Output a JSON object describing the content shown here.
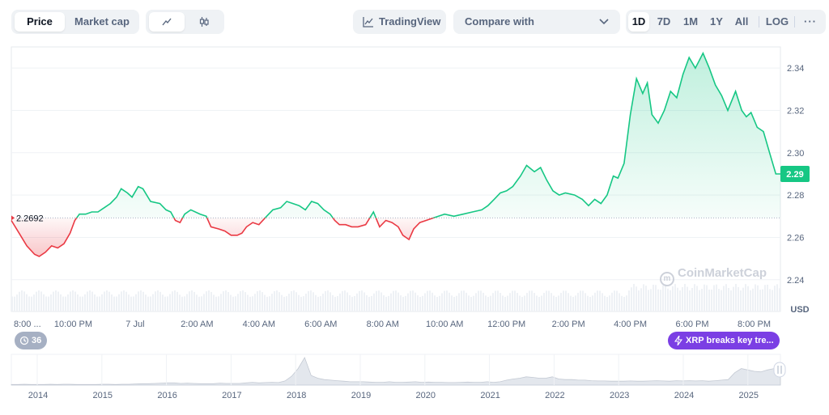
{
  "toolbar": {
    "tabs": [
      "Price",
      "Market cap"
    ],
    "active_tab": "Price",
    "line_icon": "line-chart-icon",
    "candle_icon": "candlestick-icon",
    "tradingview_label": "TradingView",
    "compare_placeholder": "Compare with",
    "ranges": [
      "1D",
      "7D",
      "1M",
      "1Y",
      "All"
    ],
    "active_range": "1D",
    "log_label": "LOG",
    "more_icon": "more-options-icon"
  },
  "colors": {
    "up": "#16c784",
    "down": "#ea3943",
    "accent_badge": "#7b3fe4",
    "grid": "#eff2f5",
    "text": "#58667e"
  },
  "events": {
    "history_count": "36",
    "news_label": "XRP breaks key tre..."
  },
  "watermark": "CoinMarketCap",
  "chart_data": {
    "type": "area",
    "ylabel": "USD",
    "ylim": [
      2.225,
      2.35
    ],
    "reference_price": 2.2692,
    "reference_label": "2.2692",
    "current_price": 2.29,
    "current_label": "2.29",
    "y_ticks": [
      "2.24",
      "2.26",
      "2.28",
      "2.30",
      "2.32",
      "2.34"
    ],
    "x_ticks": [
      "8:00 ...",
      "10:00 PM",
      "7 Jul",
      "2:00 AM",
      "4:00 AM",
      "6:00 AM",
      "8:00 AM",
      "10:00 AM",
      "12:00 PM",
      "2:00 PM",
      "4:00 PM",
      "6:00 PM",
      "8:00 PM"
    ],
    "x_hours": [
      0,
      2,
      4,
      6,
      8,
      10,
      12,
      14,
      16,
      18,
      20,
      22,
      24
    ],
    "series": [
      {
        "points": [
          [
            0.0,
            2.268
          ],
          [
            0.25,
            2.262
          ],
          [
            0.5,
            2.256
          ],
          [
            0.75,
            2.252
          ],
          [
            0.9,
            2.251
          ],
          [
            1.1,
            2.253
          ],
          [
            1.3,
            2.256
          ],
          [
            1.5,
            2.255
          ],
          [
            1.7,
            2.257
          ],
          [
            1.9,
            2.262
          ],
          [
            2.05,
            2.268
          ],
          [
            2.2,
            2.271
          ],
          [
            2.4,
            2.271
          ],
          [
            2.6,
            2.272
          ],
          [
            2.8,
            2.272
          ],
          [
            3.0,
            2.274
          ],
          [
            3.2,
            2.276
          ],
          [
            3.4,
            2.279
          ],
          [
            3.55,
            2.283
          ],
          [
            3.75,
            2.281
          ],
          [
            3.9,
            2.279
          ],
          [
            4.1,
            2.284
          ],
          [
            4.25,
            2.283
          ],
          [
            4.5,
            2.277
          ],
          [
            4.8,
            2.276
          ],
          [
            5.0,
            2.273
          ],
          [
            5.15,
            2.272
          ],
          [
            5.3,
            2.268
          ],
          [
            5.45,
            2.267
          ],
          [
            5.6,
            2.271
          ],
          [
            5.8,
            2.273
          ],
          [
            6.1,
            2.271
          ],
          [
            6.3,
            2.27
          ],
          [
            6.45,
            2.265
          ],
          [
            6.7,
            2.264
          ],
          [
            6.9,
            2.263
          ],
          [
            7.1,
            2.261
          ],
          [
            7.3,
            2.261
          ],
          [
            7.45,
            2.262
          ],
          [
            7.6,
            2.265
          ],
          [
            7.8,
            2.267
          ],
          [
            8.0,
            2.266
          ],
          [
            8.25,
            2.27
          ],
          [
            8.45,
            2.273
          ],
          [
            8.7,
            2.274
          ],
          [
            8.9,
            2.277
          ],
          [
            9.1,
            2.276
          ],
          [
            9.3,
            2.275
          ],
          [
            9.5,
            2.273
          ],
          [
            9.7,
            2.277
          ],
          [
            9.9,
            2.276
          ],
          [
            10.1,
            2.273
          ],
          [
            10.3,
            2.271
          ],
          [
            10.45,
            2.268
          ],
          [
            10.6,
            2.266
          ],
          [
            10.8,
            2.266
          ],
          [
            11.0,
            2.265
          ],
          [
            11.2,
            2.265
          ],
          [
            11.45,
            2.266
          ],
          [
            11.7,
            2.272
          ],
          [
            11.9,
            2.265
          ],
          [
            12.1,
            2.268
          ],
          [
            12.3,
            2.267
          ],
          [
            12.5,
            2.265
          ],
          [
            12.65,
            2.261
          ],
          [
            12.85,
            2.259
          ],
          [
            13.0,
            2.264
          ],
          [
            13.2,
            2.267
          ],
          [
            13.4,
            2.268
          ],
          [
            13.6,
            2.269
          ],
          [
            13.8,
            2.27
          ],
          [
            14.0,
            2.271
          ],
          [
            14.3,
            2.27
          ],
          [
            14.6,
            2.271
          ],
          [
            14.9,
            2.272
          ],
          [
            15.2,
            2.273
          ],
          [
            15.4,
            2.275
          ],
          [
            15.6,
            2.278
          ],
          [
            15.8,
            2.281
          ],
          [
            16.0,
            2.282
          ],
          [
            16.2,
            2.284
          ],
          [
            16.45,
            2.289
          ],
          [
            16.65,
            2.294
          ],
          [
            16.9,
            2.291
          ],
          [
            17.1,
            2.293
          ],
          [
            17.3,
            2.287
          ],
          [
            17.5,
            2.282
          ],
          [
            17.7,
            2.28
          ],
          [
            17.9,
            2.281
          ],
          [
            18.2,
            2.28
          ],
          [
            18.45,
            2.278
          ],
          [
            18.65,
            2.275
          ],
          [
            18.85,
            2.278
          ],
          [
            19.05,
            2.276
          ],
          [
            19.25,
            2.28
          ],
          [
            19.45,
            2.289
          ],
          [
            19.6,
            2.288
          ],
          [
            19.8,
            2.295
          ],
          [
            20.0,
            2.318
          ],
          [
            20.2,
            2.335
          ],
          [
            20.4,
            2.328
          ],
          [
            20.55,
            2.333
          ],
          [
            20.7,
            2.318
          ],
          [
            20.9,
            2.314
          ],
          [
            21.1,
            2.32
          ],
          [
            21.3,
            2.329
          ],
          [
            21.5,
            2.326
          ],
          [
            21.7,
            2.337
          ],
          [
            21.9,
            2.345
          ],
          [
            22.1,
            2.34
          ],
          [
            22.35,
            2.347
          ],
          [
            22.55,
            2.34
          ],
          [
            22.75,
            2.332
          ],
          [
            22.95,
            2.327
          ],
          [
            23.15,
            2.32
          ],
          [
            23.4,
            2.329
          ],
          [
            23.6,
            2.32
          ],
          [
            23.75,
            2.317
          ],
          [
            23.9,
            2.319
          ],
          [
            24.1,
            2.312
          ],
          [
            24.3,
            2.31
          ],
          [
            24.5,
            2.3
          ],
          [
            24.7,
            2.29
          ],
          [
            24.85,
            2.29
          ]
        ]
      }
    ]
  },
  "navigator": {
    "years": [
      "2014",
      "2015",
      "2016",
      "2017",
      "2018",
      "2019",
      "2020",
      "2021",
      "2022",
      "2023",
      "2024",
      "2025"
    ],
    "activity": [
      0.02,
      0.02,
      0.03,
      0.02,
      0.02,
      0.02,
      0.03,
      0.02,
      0.03,
      0.03,
      0.02,
      0.02,
      0.02,
      0.02,
      0.03,
      0.03,
      0.02,
      0.03,
      0.03,
      0.04,
      0.05,
      0.05,
      0.06,
      0.07,
      0.08,
      0.08,
      0.06,
      0.07,
      0.06,
      0.05,
      0.05,
      0.05,
      0.07,
      0.06,
      0.06,
      0.06,
      0.08,
      0.1,
      0.08,
      0.09,
      0.1,
      0.09,
      0.15,
      0.32,
      0.6,
      1.0,
      0.35,
      0.25,
      0.2,
      0.18,
      0.16,
      0.14,
      0.12,
      0.12,
      0.12,
      0.11,
      0.1,
      0.1,
      0.12,
      0.1,
      0.1,
      0.11,
      0.12,
      0.1,
      0.11,
      0.1,
      0.1,
      0.09,
      0.09,
      0.1,
      0.11,
      0.1,
      0.1,
      0.12,
      0.1,
      0.12,
      0.18,
      0.22,
      0.25,
      0.3,
      0.28,
      0.25,
      0.25,
      0.3,
      0.22,
      0.2,
      0.2,
      0.18,
      0.18,
      0.16,
      0.15,
      0.15,
      0.14,
      0.14,
      0.14,
      0.15,
      0.14,
      0.14,
      0.15,
      0.16,
      0.15,
      0.14,
      0.16,
      0.15,
      0.16,
      0.15,
      0.16,
      0.14,
      0.16,
      0.18,
      0.2,
      0.45,
      0.6,
      0.55,
      0.5,
      0.48,
      0.55,
      0.6,
      0.55
    ]
  }
}
